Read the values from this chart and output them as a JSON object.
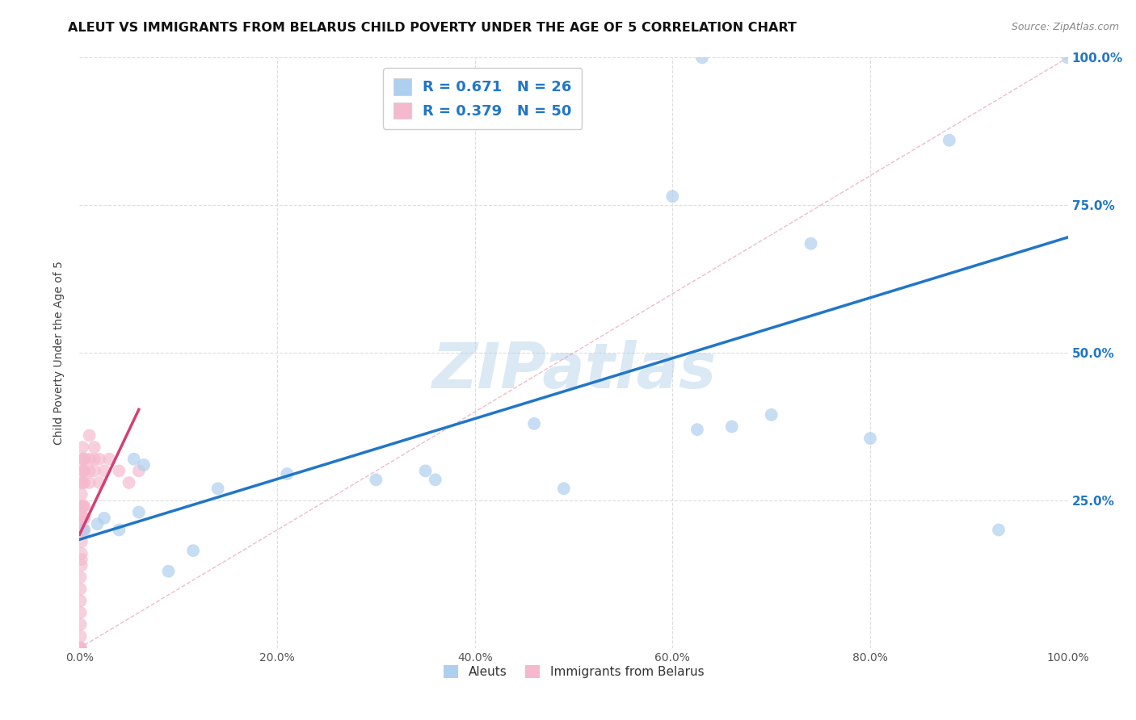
{
  "title": "ALEUT VS IMMIGRANTS FROM BELARUS CHILD POVERTY UNDER THE AGE OF 5 CORRELATION CHART",
  "source": "Source: ZipAtlas.com",
  "ylabel": "Child Poverty Under the Age of 5",
  "watermark": "ZIPatlas",
  "aleut_R": 0.671,
  "aleut_N": 26,
  "belarus_R": 0.379,
  "belarus_N": 50,
  "aleut_color": "#aecfee",
  "aleut_line_color": "#2176c7",
  "belarus_color": "#f5b8cc",
  "belarus_line_color": "#d44070",
  "aleut_x": [
    0.005,
    0.018,
    0.025,
    0.04,
    0.055,
    0.06,
    0.065,
    0.09,
    0.115,
    0.14,
    0.21,
    0.3,
    0.35,
    0.36,
    0.46,
    0.49,
    0.6,
    0.625,
    0.63,
    0.66,
    0.7,
    0.74,
    0.8,
    0.88,
    0.93,
    1.0
  ],
  "aleut_y": [
    0.2,
    0.21,
    0.22,
    0.2,
    0.32,
    0.23,
    0.31,
    0.13,
    0.165,
    0.27,
    0.295,
    0.285,
    0.3,
    0.285,
    0.38,
    0.27,
    0.765,
    0.37,
    1.0,
    0.375,
    0.395,
    0.685,
    0.355,
    0.86,
    0.2,
    1.0
  ],
  "belarus_x": [
    0.001,
    0.001,
    0.001,
    0.001,
    0.001,
    0.001,
    0.001,
    0.001,
    0.001,
    0.001,
    0.002,
    0.002,
    0.002,
    0.002,
    0.002,
    0.002,
    0.002,
    0.002,
    0.002,
    0.003,
    0.003,
    0.003,
    0.003,
    0.003,
    0.003,
    0.003,
    0.004,
    0.004,
    0.004,
    0.004,
    0.004,
    0.005,
    0.005,
    0.005,
    0.005,
    0.005,
    0.01,
    0.01,
    0.01,
    0.01,
    0.015,
    0.015,
    0.015,
    0.02,
    0.02,
    0.025,
    0.03,
    0.04,
    0.05,
    0.06
  ],
  "belarus_y": [
    0.0,
    0.0,
    0.0,
    0.0,
    0.02,
    0.04,
    0.06,
    0.08,
    0.1,
    0.12,
    0.14,
    0.15,
    0.16,
    0.18,
    0.2,
    0.22,
    0.24,
    0.26,
    0.28,
    0.2,
    0.22,
    0.24,
    0.28,
    0.3,
    0.32,
    0.34,
    0.2,
    0.22,
    0.24,
    0.3,
    0.32,
    0.22,
    0.24,
    0.28,
    0.3,
    0.32,
    0.28,
    0.3,
    0.32,
    0.36,
    0.3,
    0.32,
    0.34,
    0.28,
    0.32,
    0.3,
    0.32,
    0.3,
    0.28,
    0.3
  ],
  "xlim": [
    0.0,
    1.0
  ],
  "ylim": [
    0.0,
    1.0
  ],
  "background_color": "#ffffff",
  "grid_color": "#dddddd"
}
